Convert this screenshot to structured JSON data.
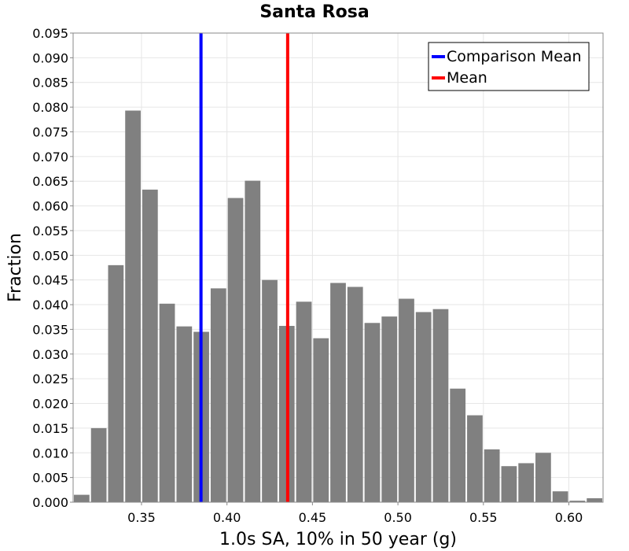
{
  "chart_data": {
    "type": "bar",
    "title": "Santa Rosa",
    "xlabel": "1.0s SA, 10% in 50 year (g)",
    "ylabel": "Fraction",
    "xlim": [
      0.31,
      0.62
    ],
    "ylim": [
      0.0,
      0.095
    ],
    "bin_width": 0.01,
    "bin_centers": [
      0.315,
      0.325,
      0.335,
      0.345,
      0.355,
      0.365,
      0.375,
      0.385,
      0.395,
      0.405,
      0.415,
      0.425,
      0.435,
      0.445,
      0.455,
      0.465,
      0.475,
      0.485,
      0.495,
      0.505,
      0.515,
      0.525,
      0.535,
      0.545,
      0.555,
      0.565,
      0.575,
      0.585,
      0.595,
      0.605,
      0.615
    ],
    "values": [
      0.0015,
      0.015,
      0.048,
      0.0793,
      0.0633,
      0.0402,
      0.0356,
      0.0345,
      0.0433,
      0.0616,
      0.0651,
      0.045,
      0.0357,
      0.0406,
      0.0332,
      0.0444,
      0.0436,
      0.0363,
      0.0376,
      0.0412,
      0.0385,
      0.0391,
      0.023,
      0.0176,
      0.0107,
      0.0073,
      0.0079,
      0.01,
      0.0022,
      0.0003,
      0.0008
    ],
    "bar_color": "#808080",
    "vlines": [
      {
        "name": "Comparison Mean",
        "x": 0.3848,
        "color": "#0000ff"
      },
      {
        "name": "Mean",
        "x": 0.4355,
        "color": "#ff0000"
      }
    ],
    "xticks": [
      "0.35",
      "0.40",
      "0.45",
      "0.50",
      "0.55",
      "0.60"
    ],
    "yticks": [
      "0.000",
      "0.005",
      "0.010",
      "0.015",
      "0.020",
      "0.025",
      "0.030",
      "0.035",
      "0.040",
      "0.045",
      "0.050",
      "0.055",
      "0.060",
      "0.065",
      "0.070",
      "0.075",
      "0.080",
      "0.085",
      "0.090",
      "0.095"
    ],
    "grid": true,
    "legend_position": "top-right"
  }
}
